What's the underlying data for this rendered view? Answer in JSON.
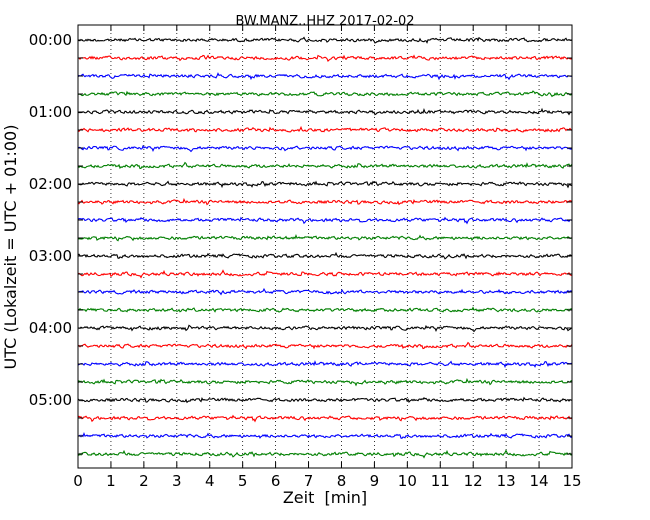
{
  "chart_data": {
    "type": "line",
    "title": "BW.MANZ..HHZ 2017-02-02",
    "xlabel": "Zeit  [min]",
    "ylabel": "UTC (Lokalzeit = UTC + 01:00)",
    "xlim": [
      0,
      15
    ],
    "x_ticks": [
      0,
      1,
      2,
      3,
      4,
      5,
      6,
      7,
      8,
      9,
      10,
      11,
      12,
      13,
      14,
      15
    ],
    "x_tick_labels": [
      "0",
      "1",
      "2",
      "3",
      "4",
      "5",
      "6",
      "7",
      "8",
      "9",
      "10",
      "11",
      "12",
      "13",
      "14",
      "15"
    ],
    "y_tick_labels": [
      "00:00",
      "01:00",
      "02:00",
      "03:00",
      "04:00",
      "05:00"
    ],
    "row_minutes": 15,
    "rows": 24,
    "grid": "vertical dotted",
    "colors": [
      "#000000",
      "#ff0000",
      "#0000ff",
      "#007f00"
    ]
  }
}
